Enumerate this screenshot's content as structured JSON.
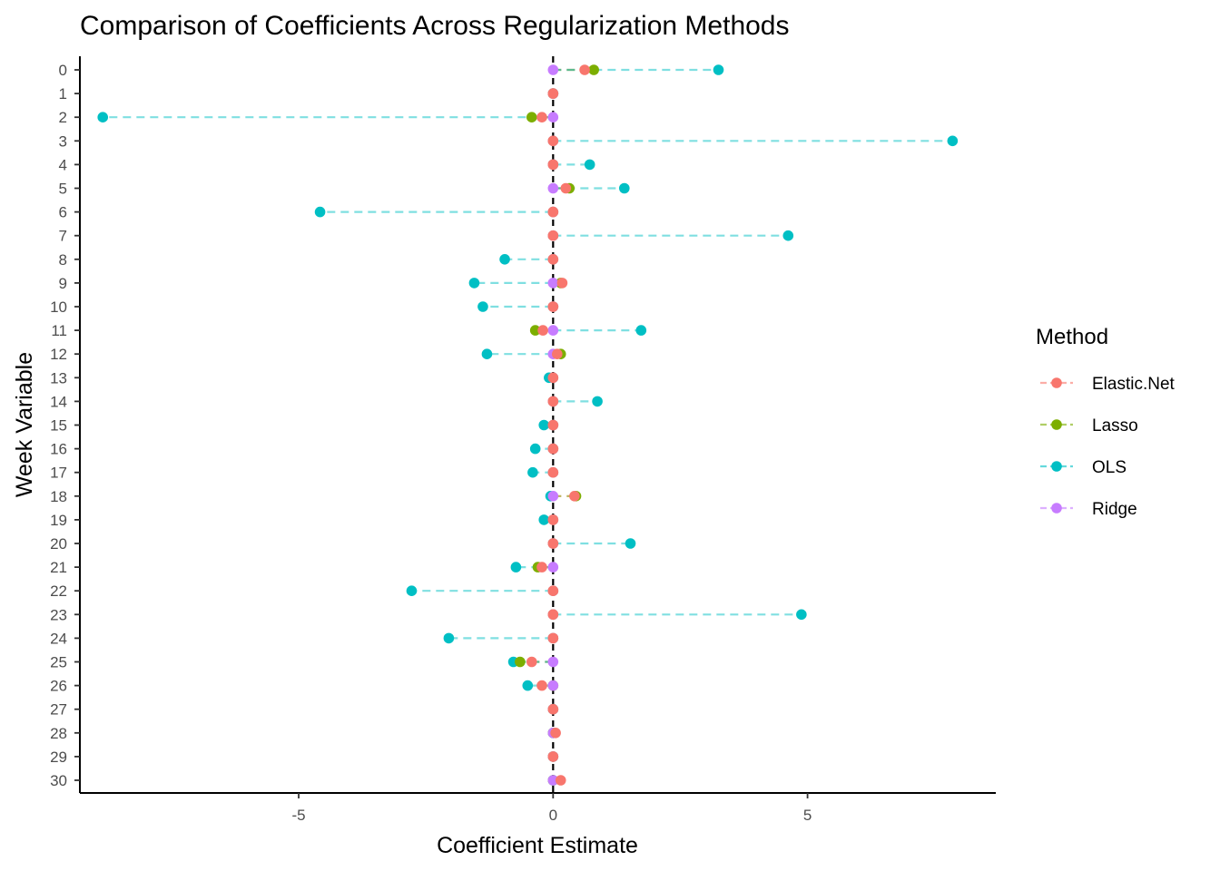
{
  "chart_data": {
    "type": "scatter",
    "title": "Comparison of Coefficients Across Regularization Methods",
    "xlabel": "Coefficient Estimate",
    "ylabel": "Week Variable",
    "xlim": [
      -9.3,
      8.7
    ],
    "x_ticks": [
      -5,
      0,
      5
    ],
    "x_tick_labels": [
      "-5",
      "0",
      "5"
    ],
    "categories": [
      "0",
      "1",
      "2",
      "3",
      "4",
      "5",
      "6",
      "7",
      "8",
      "9",
      "10",
      "11",
      "12",
      "13",
      "14",
      "15",
      "16",
      "17",
      "18",
      "19",
      "20",
      "21",
      "22",
      "23",
      "24",
      "25",
      "26",
      "27",
      "28",
      "29",
      "30"
    ],
    "grid": false,
    "reference_line": {
      "x": 0,
      "style": "dashed"
    },
    "legend": {
      "title": "Method",
      "position": "right"
    },
    "series": [
      {
        "name": "Elastic.Net",
        "color": "#F8766D",
        "values": [
          0.62,
          0,
          -0.22,
          0,
          0,
          0.25,
          0,
          0,
          0,
          0.18,
          0,
          -0.2,
          0.08,
          0,
          0,
          0,
          0,
          0,
          0.42,
          0,
          0,
          -0.22,
          0,
          0,
          0,
          -0.42,
          -0.22,
          0,
          0.05,
          0,
          0.15
        ]
      },
      {
        "name": "Lasso",
        "color": "#7CAE00",
        "values": [
          0.8,
          0,
          -0.42,
          0,
          0,
          0.32,
          0,
          0,
          0,
          0.15,
          0,
          -0.35,
          0.15,
          0,
          0,
          0,
          0,
          0,
          0.45,
          0,
          0,
          -0.3,
          0,
          0,
          0,
          -0.65,
          0,
          0,
          0,
          0,
          0
        ]
      },
      {
        "name": "OLS",
        "color": "#00BFC4",
        "values": [
          3.25,
          0,
          -8.85,
          7.85,
          0.72,
          1.4,
          -4.58,
          4.62,
          -0.95,
          -1.55,
          -1.38,
          1.73,
          -1.3,
          -0.08,
          0.87,
          -0.18,
          -0.35,
          -0.4,
          -0.05,
          -0.18,
          1.52,
          -0.73,
          -2.78,
          4.88,
          -2.05,
          -0.78,
          -0.5,
          0,
          0,
          0,
          0
        ]
      },
      {
        "name": "Ridge",
        "color": "#C77CFF",
        "values": [
          0,
          0,
          0,
          0,
          0,
          0,
          0,
          0,
          0,
          0,
          0,
          0,
          0,
          0,
          0,
          0,
          0,
          0,
          0,
          0,
          0,
          0,
          0,
          0,
          0,
          0,
          0,
          0,
          0,
          0,
          0
        ]
      }
    ]
  }
}
